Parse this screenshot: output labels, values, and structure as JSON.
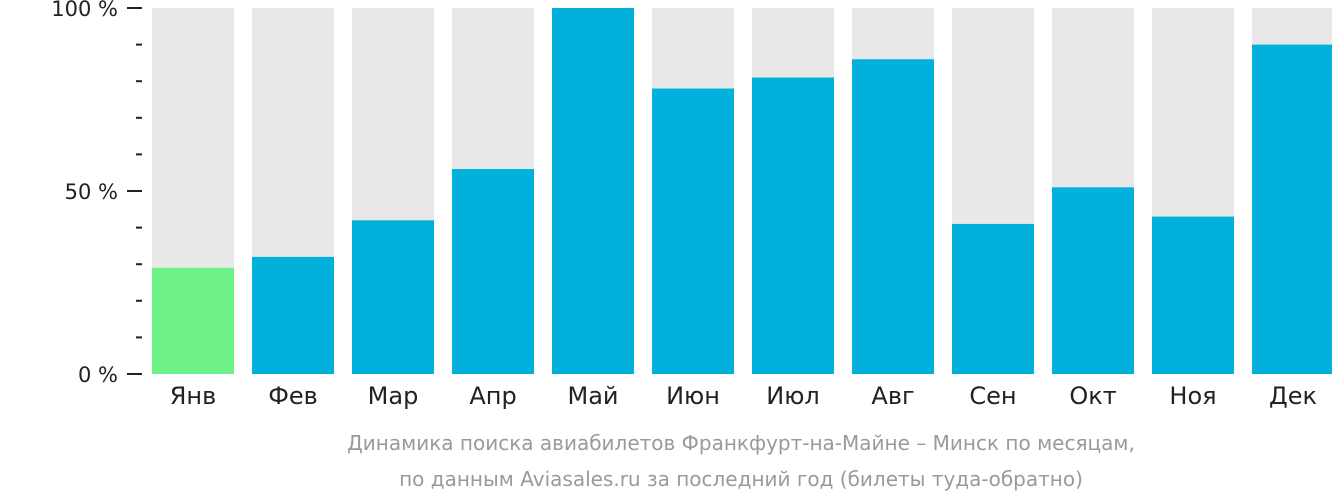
{
  "chart_data": {
    "type": "bar",
    "categories": [
      "Янв",
      "Фев",
      "Мар",
      "Апр",
      "Май",
      "Июн",
      "Июл",
      "Авг",
      "Сен",
      "Окт",
      "Ноя",
      "Дек"
    ],
    "values": [
      29,
      32,
      42,
      56,
      100,
      78,
      81,
      86,
      41,
      51,
      43,
      90
    ],
    "ylim": [
      0,
      100
    ],
    "yticks": [
      {
        "value": 100,
        "label": "100 %"
      },
      {
        "value": 50,
        "label": "50 %"
      },
      {
        "value": 0,
        "label": "0 %"
      }
    ],
    "minor_tick_step": 10,
    "highlight_index": 0,
    "grid": false,
    "colors": {
      "bar": "#02b0dc",
      "highlight": "#6ef287",
      "background_bar": "#e8e8e8",
      "axis": "#222222"
    }
  },
  "caption": {
    "line1": "Динамика поиска авиабилетов Франкфурт-на-Майне – Минск по месяцам,",
    "line2": "по данным Aviasales.ru за последний год (билеты туда-обратно)"
  }
}
